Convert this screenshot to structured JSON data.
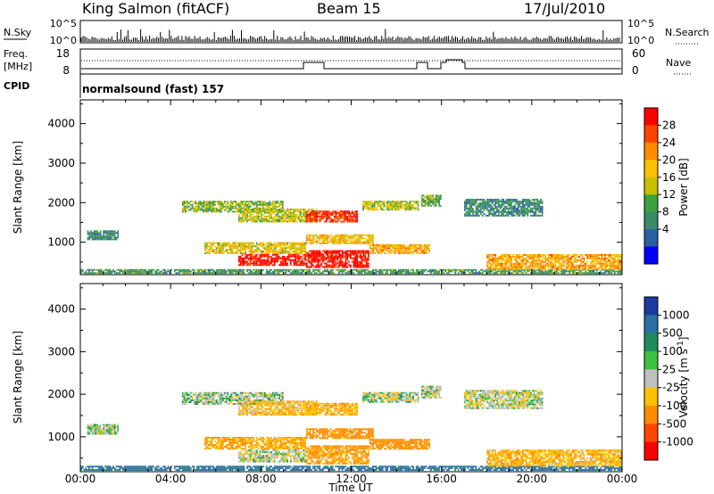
{
  "header": {
    "station": "King Salmon (fitACF)",
    "beam": "Beam 15",
    "date": "17/Jul/2010"
  },
  "top_panels": {
    "nsky_label": "N.Sky",
    "nsky_ticks": [
      "10^5",
      "10^0"
    ],
    "nsearch_label": "N.Search",
    "nsearch_ticks": [
      "10^5",
      "10^0"
    ],
    "freq_label_line1": "Freq.",
    "freq_label_line2": "[MHz]",
    "freq_ticks": [
      "18",
      "8"
    ],
    "nave_label": "Nave",
    "nave_ticks": [
      "60",
      "0"
    ],
    "cpid_label": "CPID",
    "cpid_text": "normalsound (fast) 157"
  },
  "axes": {
    "xlabel": "Time UT",
    "xticks": [
      "00:00",
      "04:00",
      "08:00",
      "12:00",
      "16:00",
      "20:00",
      "00:00"
    ],
    "ylabel": "Slant Range [km]",
    "yticks": [
      "4000",
      "3000",
      "2000",
      "1000"
    ]
  },
  "power_colorbar": {
    "label": "Power [dB]",
    "ticks": [
      "28",
      "24",
      "20",
      "16",
      "12",
      "8",
      "4"
    ],
    "colors": [
      "#ff0000",
      "#ff4400",
      "#ff8c00",
      "#ffc000",
      "#c8c000",
      "#40a040",
      "#3a8a6a",
      "#2a5fa0",
      "#0000ff"
    ]
  },
  "velocity_colorbar": {
    "label": "Velocity [m s",
    "label_sup": "-1",
    "label_end": "]",
    "ticks": [
      "1000",
      "500",
      "100",
      "25",
      "-25",
      "-100",
      "-500",
      "-1000"
    ],
    "colors": [
      "#1a3aa0",
      "#2a70a0",
      "#1f8a5a",
      "#40c040",
      "#c0c0c0",
      "#ffc000",
      "#ff8c00",
      "#ff4400",
      "#ff0000"
    ]
  },
  "chart_data": {
    "type": "heatmap",
    "x_range_hours": [
      0,
      24
    ],
    "y_range_km": [
      180,
      4600
    ],
    "panels": [
      "power",
      "velocity"
    ],
    "echo_regions": [
      {
        "start": 0.3,
        "end": 1.7,
        "ymin": 1050,
        "ymax": 1300,
        "power": 6,
        "velocity": 10
      },
      {
        "start": 0.0,
        "end": 24.0,
        "ymin": 200,
        "ymax": 320,
        "power": 8,
        "velocity": 150
      },
      {
        "start": 4.5,
        "end": 9.0,
        "ymin": 1750,
        "ymax": 2050,
        "power": 12,
        "velocity": 15
      },
      {
        "start": 7.0,
        "end": 10.5,
        "ymin": 1500,
        "ymax": 1850,
        "power": 14,
        "velocity": -60
      },
      {
        "start": 10.0,
        "end": 12.3,
        "ymin": 1500,
        "ymax": 1800,
        "power": 28,
        "velocity": -80
      },
      {
        "start": 12.5,
        "end": 15.0,
        "ymin": 1800,
        "ymax": 2050,
        "power": 14,
        "velocity": 10
      },
      {
        "start": 15.1,
        "end": 16.0,
        "ymin": 1900,
        "ymax": 2200,
        "power": 10,
        "velocity": 5
      },
      {
        "start": 5.5,
        "end": 10.0,
        "ymin": 700,
        "ymax": 1000,
        "power": 16,
        "velocity": -100
      },
      {
        "start": 7.0,
        "end": 10.0,
        "ymin": 400,
        "ymax": 700,
        "power": 30,
        "velocity": 5
      },
      {
        "start": 10.0,
        "end": 12.8,
        "ymin": 350,
        "ymax": 800,
        "power": 30,
        "velocity": -120
      },
      {
        "start": 10.0,
        "end": 13.0,
        "ymin": 950,
        "ymax": 1200,
        "power": 18,
        "velocity": -150
      },
      {
        "start": 12.8,
        "end": 15.5,
        "ymin": 700,
        "ymax": 950,
        "power": 20,
        "velocity": -150
      },
      {
        "start": 18.0,
        "end": 24.0,
        "ymin": 300,
        "ymax": 700,
        "power": 20,
        "velocity": -80
      },
      {
        "start": 17.0,
        "end": 20.5,
        "ymin": 1650,
        "ymax": 2100,
        "power": 6,
        "velocity": 0
      }
    ]
  }
}
